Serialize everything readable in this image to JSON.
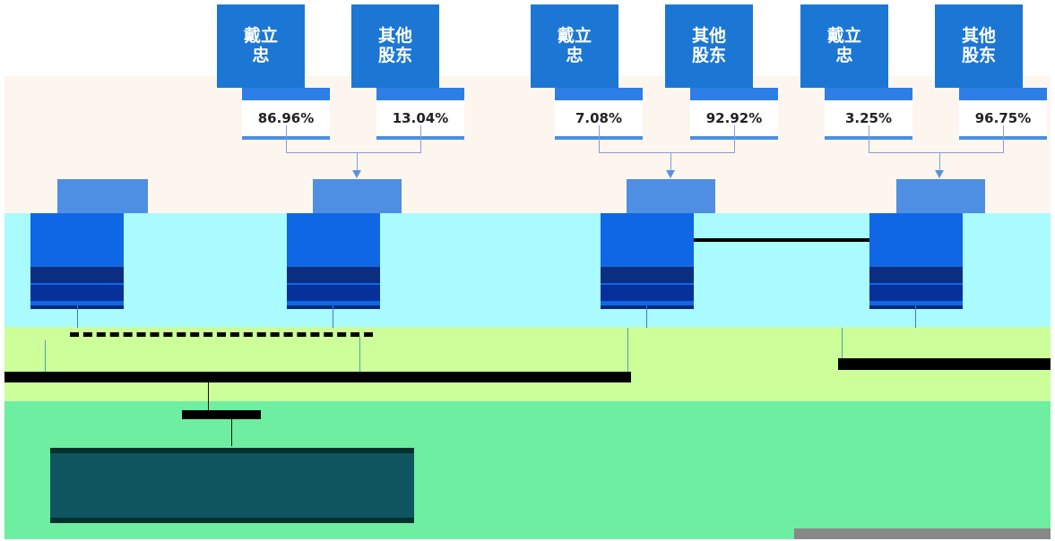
{
  "top_holders": [
    {
      "name": "戴立忠",
      "pct": "86.96%"
    },
    {
      "name": "其他股东",
      "pct": "13.04%"
    },
    {
      "name": "戴立忠",
      "pct": "7.08%"
    },
    {
      "name": "其他股东",
      "pct": "92.92%"
    },
    {
      "name": "戴立忠",
      "pct": "3.25%"
    },
    {
      "name": "其他股东",
      "pct": "96.75%"
    }
  ],
  "colors": {
    "holder_box": "#1c77d4",
    "band_top": "#fdf6ee",
    "band_cyan": "#a9fbff",
    "band_lime": "#ccfe9a",
    "band_green": "#6eeea0",
    "entity_box": "#1067e6"
  }
}
